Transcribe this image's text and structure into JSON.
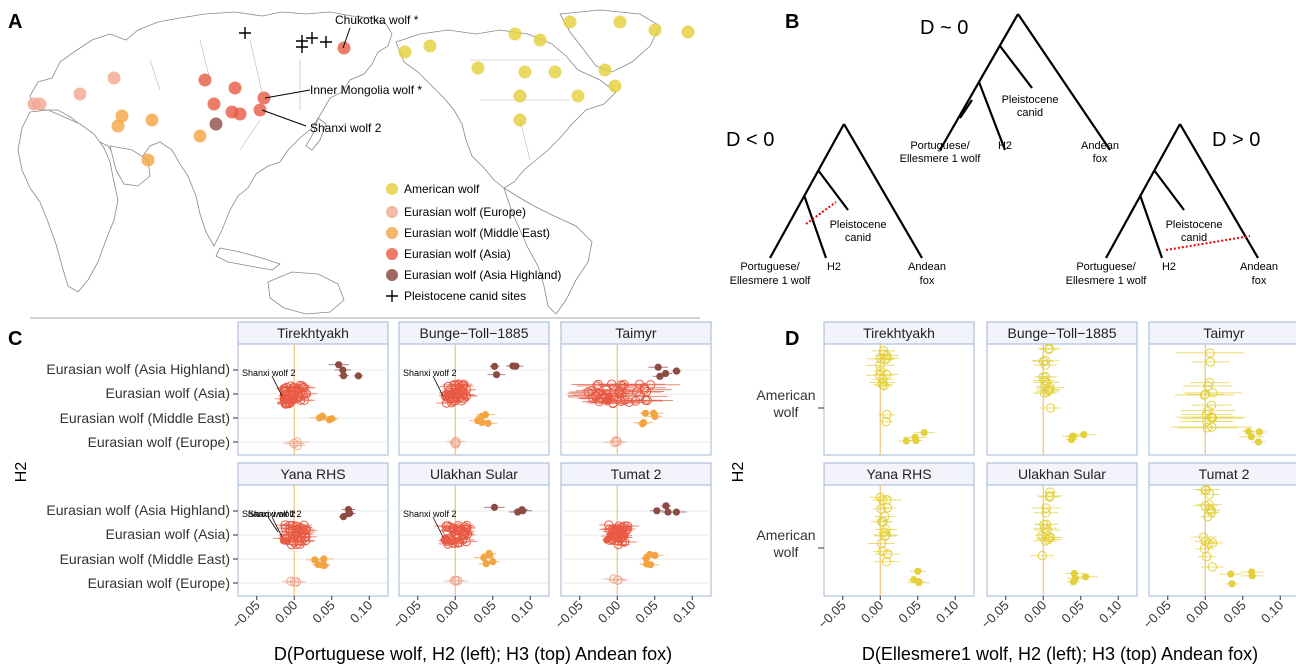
{
  "figure": {
    "panels": [
      "A",
      "B",
      "C",
      "D"
    ],
    "map": {
      "annotations": [
        "Chukotka wolf *",
        "Inner Mongolia wolf *",
        "Shanxi wolf 2"
      ],
      "legend": [
        {
          "label": "American wolf",
          "color": "#e3d03a"
        },
        {
          "label": "Eurasian wolf (Europe)",
          "color": "#f2a78f"
        },
        {
          "label": "Eurasian wolf (Middle East)",
          "color": "#f4a442"
        },
        {
          "label": "Eurasian wolf (Asia)",
          "color": "#e85a43"
        },
        {
          "label": "Eurasian wolf (Asia Highland)",
          "color": "#8e4b44"
        },
        {
          "label": "Pleistocene canid sites",
          "color": "#000000"
        }
      ]
    },
    "trees": {
      "center_label": "D ~ 0",
      "left_label": "D < 0",
      "right_label": "D > 0",
      "tip_portuguese": [
        "Portuguese/",
        "Ellesmere 1 wolf"
      ],
      "tip_h2": "H2",
      "tip_pleistocene": [
        "Pleistocene",
        "canid"
      ],
      "tip_andean": [
        "Andean",
        "fox"
      ]
    },
    "panel_c": {
      "facets": [
        "Tirekhtyakh",
        "Bunge−Toll−1885",
        "Taimyr",
        "Yana RHS",
        "Ulakhan Sular",
        "Tumat 2"
      ],
      "groups": [
        "Eurasian wolf (Asia Highland)",
        "Eurasian wolf (Asia)",
        "Eurasian wolf (Middle East)",
        "Eurasian wolf (Europe)"
      ],
      "annotation": "Shanxi wolf 2",
      "ylabel": "H2",
      "xlabel": "D(Portuguese wolf, H2 (left); H3 (top) Andean fox)",
      "ticks": [
        "−0.05",
        "0.00",
        "0.05",
        "0.10"
      ]
    },
    "panel_d": {
      "facets": [
        "Tirekhtyakh",
        "Bunge−Toll−1885",
        "Taimyr",
        "Yana RHS",
        "Ulakhan Sular",
        "Tumat 2"
      ],
      "group_line1": "American",
      "group_line2": "wolf",
      "ylabel": "H2",
      "xlabel": "D(Ellesmere1 wolf, H2 (left); H3 (top) Andean fox)",
      "ticks": [
        "−0.05",
        "0.00",
        "0.05",
        "0.10"
      ]
    }
  }
}
